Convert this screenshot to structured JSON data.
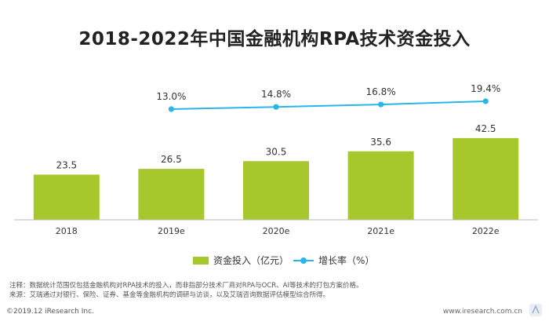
{
  "header": {
    "title": "2018-2022年中国金融机构RPA技术资金投入"
  },
  "colors": {
    "bar": "#a6c82c",
    "line": "#29b6e6",
    "axis": "#bbbbbb"
  },
  "chart_data": {
    "type": "bar+line",
    "title": "2018-2022年中国金融机构RPA技术资金投入",
    "categories": [
      "2018",
      "2019e",
      "2020e",
      "2021e",
      "2022e"
    ],
    "series": [
      {
        "name": "资金投入（亿元）",
        "type": "bar",
        "values": [
          23.5,
          26.5,
          30.5,
          35.6,
          42.5
        ],
        "labels": [
          "23.5",
          "26.5",
          "30.5",
          "35.6",
          "42.5"
        ]
      },
      {
        "name": "增长率（%）",
        "type": "line",
        "values": [
          null,
          13.0,
          14.8,
          16.8,
          19.4
        ],
        "labels": [
          "",
          "13.0%",
          "14.8%",
          "16.8%",
          "19.4%"
        ]
      }
    ],
    "legend_position": "bottom",
    "grid": false
  },
  "notes": [
    "注释：数据统计范围仅包括金融机构对RPA技术的投入，而非指部分技术厂商对RPA与OCR、AI等技术的打包方案价格。",
    "来源：艾瑞通过对银行、保险、证券、基金等金融机构的调研与访谈，以及艾瑞咨询数据评估模型综合所得。"
  ],
  "footer": {
    "copyright": "©2019.12 iResearch Inc.",
    "site": "www.iresearch.com.cn"
  },
  "logo": {
    "text": "艾瑞"
  }
}
